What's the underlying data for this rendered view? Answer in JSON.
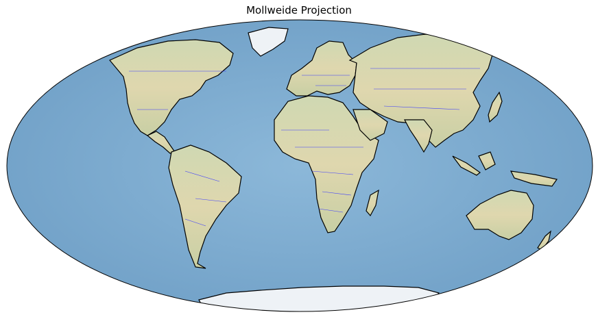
{
  "title": "Mollweide Projection",
  "colors": {
    "ocean": "#7aa9cf",
    "land": "#d9d6a8",
    "coast": "#000000",
    "borders": "#3a3aff",
    "ice": "#eef2f6"
  }
}
